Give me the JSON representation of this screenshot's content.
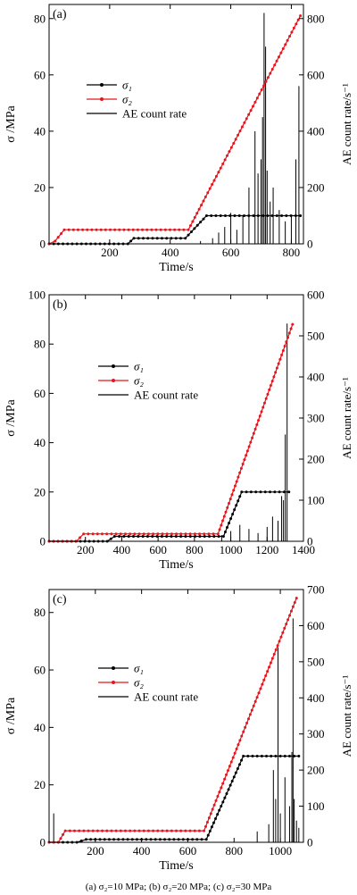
{
  "caption": "(a) σ₂=10 MPa; (b) σ₂=20 MPa; (c) σ₂=30 MPa",
  "colors": {
    "sigma1": "#000000",
    "sigma2": "#e8141c",
    "ae": "#000000",
    "axis": "#000000"
  },
  "chart_data": [
    {
      "type": "line",
      "panel_label": "(a)",
      "xlabel": "Time/s",
      "ylabel_left": "σ /MPa",
      "ylabel_right": "AE  count rate/s⁻¹",
      "xlim": [
        0,
        840
      ],
      "xticks": [
        200,
        400,
        600,
        800
      ],
      "xtick_labels": [
        "200",
        "400",
        "600",
        "800"
      ],
      "ylim_left": [
        0,
        85
      ],
      "yticks_left": [
        0,
        20,
        40,
        60,
        80
      ],
      "ytick_labels_left": [
        "0",
        "20",
        "40",
        "60",
        "80"
      ],
      "ylim_right": [
        0,
        850
      ],
      "yticks_right": [
        0,
        200,
        400,
        600,
        800
      ],
      "ytick_labels_right": [
        "0",
        "200",
        "400",
        "600",
        "800"
      ],
      "legend": [
        "σ₁",
        "σ₂",
        "AE count rate"
      ],
      "legend_position": "upper-left",
      "series": [
        {
          "name": "σ₁",
          "x": [
            0,
            260,
            280,
            450,
            520,
            830
          ],
          "y": [
            0,
            0,
            2,
            2,
            10,
            10
          ]
        },
        {
          "name": "σ₂",
          "x": [
            0,
            20,
            50,
            460,
            830
          ],
          "y": [
            0,
            1,
            5,
            5,
            81
          ]
        },
        {
          "name": "AE count rate",
          "x": [
            500,
            540,
            560,
            580,
            600,
            620,
            640,
            660,
            680,
            690,
            700,
            705,
            710,
            715,
            720,
            730,
            740,
            760,
            780,
            800,
            815,
            825
          ],
          "y": [
            10,
            20,
            40,
            60,
            110,
            50,
            100,
            200,
            400,
            250,
            300,
            450,
            820,
            700,
            260,
            150,
            200,
            120,
            80,
            100,
            300,
            560
          ]
        }
      ]
    },
    {
      "type": "line",
      "panel_label": "(b)",
      "xlabel": "Time/s",
      "ylabel_left": "σ /MPa",
      "ylabel_right": "AE  count rate/s⁻¹",
      "xlim": [
        0,
        1400
      ],
      "xticks": [
        200,
        400,
        600,
        800,
        1000,
        1200,
        1400
      ],
      "xtick_labels": [
        "200",
        "400",
        "600",
        "800",
        "1000",
        "1200",
        "1400"
      ],
      "ylim_left": [
        0,
        100
      ],
      "yticks_left": [
        0,
        20,
        40,
        60,
        80,
        100
      ],
      "ytick_labels_left": [
        "0",
        "20",
        "40",
        "60",
        "80",
        "100"
      ],
      "ylim_right": [
        0,
        600
      ],
      "yticks_right": [
        0,
        100,
        200,
        300,
        400,
        500,
        600
      ],
      "ytick_labels_right": [
        "0",
        "100",
        "200",
        "300",
        "400",
        "500",
        "600"
      ],
      "legend": [
        "σ₁",
        "σ₂",
        "AE count rate"
      ],
      "legend_position": "middle-left",
      "series": [
        {
          "name": "σ₁",
          "x": [
            0,
            320,
            360,
            960,
            1060,
            1320
          ],
          "y": [
            0,
            0,
            2,
            2,
            20,
            20
          ]
        },
        {
          "name": "σ₂",
          "x": [
            0,
            150,
            190,
            930,
            1340
          ],
          "y": [
            0,
            0,
            3,
            3,
            88
          ]
        },
        {
          "name": "AE count rate",
          "x": [
            950,
            1000,
            1050,
            1100,
            1150,
            1200,
            1230,
            1260,
            1280,
            1290,
            1300,
            1310
          ],
          "y": [
            15,
            25,
            40,
            30,
            20,
            35,
            60,
            50,
            110,
            100,
            260,
            530
          ]
        }
      ]
    },
    {
      "type": "line",
      "panel_label": "(c)",
      "xlabel": "Time/s",
      "ylabel_left": "σ /MPa",
      "ylabel_right": "AE  count rate/s⁻¹",
      "xlim": [
        0,
        1100
      ],
      "xticks": [
        200,
        400,
        600,
        800,
        1000
      ],
      "xtick_labels": [
        "200",
        "400",
        "600",
        "800",
        "1000"
      ],
      "ylim_left": [
        0,
        88
      ],
      "yticks_left": [
        0,
        20,
        40,
        60,
        80
      ],
      "ytick_labels_left": [
        "0",
        "20",
        "40",
        "60",
        "80"
      ],
      "ylim_right": [
        0,
        700
      ],
      "yticks_right": [
        0,
        100,
        200,
        300,
        400,
        500,
        600,
        700
      ],
      "ytick_labels_right": [
        "0",
        "100",
        "200",
        "300",
        "400",
        "500",
        "600",
        "700"
      ],
      "legend": [
        "σ₁",
        "σ₂",
        "AE count rate"
      ],
      "legend_position": "middle-left",
      "series": [
        {
          "name": "σ₁",
          "x": [
            0,
            120,
            160,
            680,
            840,
            1080
          ],
          "y": [
            0,
            0,
            1,
            1,
            30,
            30
          ]
        },
        {
          "name": "σ₂",
          "x": [
            0,
            40,
            70,
            670,
            1070
          ],
          "y": [
            0,
            0,
            4,
            4,
            85
          ]
        },
        {
          "name": "AE count rate",
          "x": [
            20,
            900,
            950,
            970,
            980,
            990,
            1000,
            1020,
            1040,
            1050,
            1055,
            1060,
            1070,
            1080
          ],
          "y": [
            80,
            30,
            50,
            200,
            120,
            540,
            80,
            180,
            100,
            250,
            620,
            120,
            60,
            40
          ]
        }
      ]
    }
  ]
}
